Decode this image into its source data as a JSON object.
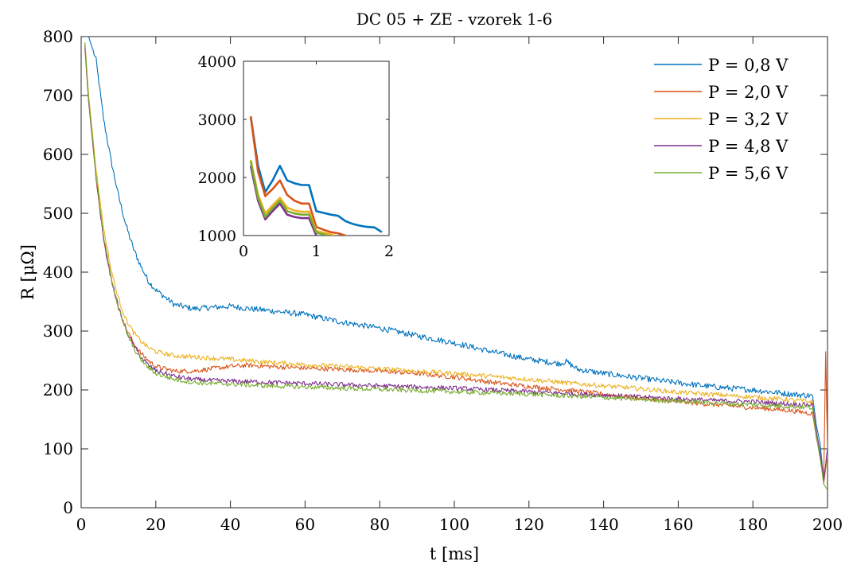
{
  "chart_data": {
    "type": "line",
    "title": "DC 05 + ZE - vzorek 1-6",
    "xlabel": "t [ms]",
    "ylabel": "R [μΩ]",
    "xlim": [
      0,
      200
    ],
    "ylim": [
      0,
      800
    ],
    "xticks": [
      0,
      20,
      40,
      60,
      80,
      100,
      120,
      140,
      160,
      180,
      200
    ],
    "yticks": [
      0,
      100,
      200,
      300,
      400,
      500,
      600,
      700,
      800
    ],
    "grid": false,
    "legend_position": "top-right",
    "series": [
      {
        "name": "P = 0,8 V",
        "color": "#0072BD",
        "x": [
          2,
          4,
          6,
          8,
          10,
          12,
          14,
          16,
          18,
          20,
          25,
          30,
          35,
          40,
          45,
          50,
          60,
          70,
          80,
          90,
          100,
          110,
          120,
          128,
          130,
          133,
          140,
          150,
          160,
          170,
          180,
          190,
          196,
          197,
          198,
          199,
          200
        ],
        "y": [
          800,
          760,
          660,
          590,
          530,
          480,
          440,
          410,
          385,
          370,
          345,
          338,
          340,
          342,
          338,
          335,
          328,
          315,
          305,
          292,
          280,
          265,
          252,
          245,
          248,
          235,
          228,
          220,
          212,
          205,
          200,
          193,
          190,
          140,
          110,
          45,
          100
        ]
      },
      {
        "name": "P = 2,0 V",
        "color": "#D95319",
        "x": [
          1,
          2,
          4,
          6,
          8,
          10,
          12,
          14,
          16,
          18,
          20,
          25,
          30,
          35,
          40,
          45,
          50,
          60,
          70,
          80,
          90,
          100,
          110,
          120,
          130,
          140,
          150,
          160,
          170,
          180,
          190,
          196,
          197,
          198,
          199,
          199.5,
          200
        ],
        "y": [
          780,
          690,
          560,
          460,
          390,
          340,
          305,
          280,
          262,
          250,
          240,
          232,
          232,
          236,
          240,
          242,
          240,
          237,
          235,
          232,
          228,
          222,
          213,
          206,
          200,
          193,
          186,
          180,
          175,
          170,
          165,
          160,
          120,
          90,
          55,
          265,
          100
        ]
      },
      {
        "name": "P = 3,2 V",
        "color": "#EDB120",
        "x": [
          1,
          2,
          4,
          6,
          8,
          10,
          12,
          14,
          16,
          18,
          20,
          25,
          30,
          35,
          40,
          50,
          60,
          70,
          80,
          90,
          100,
          110,
          120,
          130,
          140,
          150,
          160,
          170,
          180,
          190,
          196,
          197,
          198,
          199,
          200
        ],
        "y": [
          790,
          700,
          575,
          475,
          405,
          355,
          320,
          298,
          283,
          272,
          265,
          258,
          256,
          254,
          252,
          247,
          243,
          240,
          236,
          232,
          228,
          223,
          218,
          212,
          207,
          202,
          196,
          192,
          188,
          183,
          180,
          130,
          90,
          40,
          90
        ]
      },
      {
        "name": "P = 4,8 V",
        "color": "#7E2F8E",
        "x": [
          1,
          2,
          4,
          6,
          8,
          10,
          12,
          14,
          16,
          18,
          20,
          25,
          30,
          35,
          40,
          50,
          60,
          70,
          80,
          90,
          100,
          110,
          120,
          130,
          140,
          150,
          160,
          170,
          180,
          190,
          196,
          197,
          198,
          199,
          200
        ],
        "y": [
          785,
          690,
          560,
          455,
          390,
          340,
          302,
          276,
          256,
          242,
          233,
          223,
          218,
          216,
          215,
          213,
          211,
          209,
          207,
          205,
          203,
          200,
          197,
          194,
          191,
          188,
          185,
          182,
          180,
          176,
          175,
          130,
          95,
          45,
          100
        ]
      },
      {
        "name": "P = 5,6 V",
        "color": "#77AC30",
        "x": [
          1,
          2,
          4,
          6,
          8,
          10,
          12,
          14,
          16,
          18,
          20,
          25,
          30,
          35,
          40,
          50,
          60,
          70,
          80,
          90,
          100,
          110,
          120,
          130,
          140,
          150,
          160,
          170,
          180,
          190,
          196,
          197,
          198,
          199,
          200
        ],
        "y": [
          790,
          695,
          565,
          460,
          392,
          340,
          300,
          272,
          252,
          238,
          228,
          218,
          213,
          211,
          210,
          207,
          205,
          203,
          201,
          199,
          197,
          195,
          193,
          190,
          187,
          184,
          181,
          178,
          175,
          172,
          170,
          120,
          85,
          40,
          30
        ]
      }
    ],
    "inset": {
      "xlim": [
        0,
        2
      ],
      "ylim": [
        1000,
        4000
      ],
      "xticks": [
        0,
        1,
        2
      ],
      "yticks": [
        1000,
        2000,
        3000,
        4000
      ],
      "series": [
        {
          "name": "P = 0,8 V",
          "color": "#0072BD",
          "x": [
            0.1,
            0.2,
            0.3,
            0.4,
            0.5,
            0.6,
            0.7,
            0.8,
            0.9,
            1.0,
            1.1,
            1.2,
            1.3,
            1.4,
            1.5,
            1.6,
            1.7,
            1.8,
            1.9
          ],
          "y": [
            3050,
            2200,
            1750,
            1950,
            2200,
            1950,
            1900,
            1870,
            1870,
            1420,
            1390,
            1360,
            1340,
            1250,
            1200,
            1170,
            1150,
            1140,
            1060
          ]
        },
        {
          "name": "P = 2,0 V",
          "color": "#D95319",
          "x": [
            0.1,
            0.2,
            0.3,
            0.4,
            0.5,
            0.6,
            0.7,
            0.8,
            0.9,
            1.0,
            1.1,
            1.2,
            1.3,
            1.4
          ],
          "y": [
            3050,
            2100,
            1680,
            1800,
            1950,
            1700,
            1600,
            1550,
            1550,
            1150,
            1100,
            1060,
            1040,
            1000
          ]
        },
        {
          "name": "P = 3,2 V",
          "color": "#EDB120",
          "x": [
            0.1,
            0.2,
            0.3,
            0.4,
            0.5,
            0.6,
            0.7,
            0.8,
            0.9,
            1.0,
            1.1,
            1.2,
            1.25
          ],
          "y": [
            2300,
            1700,
            1380,
            1520,
            1650,
            1480,
            1430,
            1410,
            1410,
            1080,
            1050,
            1020,
            1000
          ]
        },
        {
          "name": "P = 4,8 V",
          "color": "#7E2F8E",
          "x": [
            0.1,
            0.2,
            0.3,
            0.4,
            0.5,
            0.6,
            0.7,
            0.8,
            0.9,
            1.0
          ],
          "y": [
            2200,
            1600,
            1280,
            1420,
            1550,
            1360,
            1320,
            1300,
            1300,
            1000
          ]
        },
        {
          "name": "P = 5,6 V",
          "color": "#77AC30",
          "x": [
            0.1,
            0.2,
            0.3,
            0.4,
            0.5,
            0.6,
            0.7,
            0.8,
            0.9,
            1.0,
            1.1,
            1.15
          ],
          "y": [
            2280,
            1650,
            1320,
            1470,
            1600,
            1420,
            1380,
            1360,
            1360,
            1050,
            1020,
            1000
          ]
        }
      ]
    }
  }
}
